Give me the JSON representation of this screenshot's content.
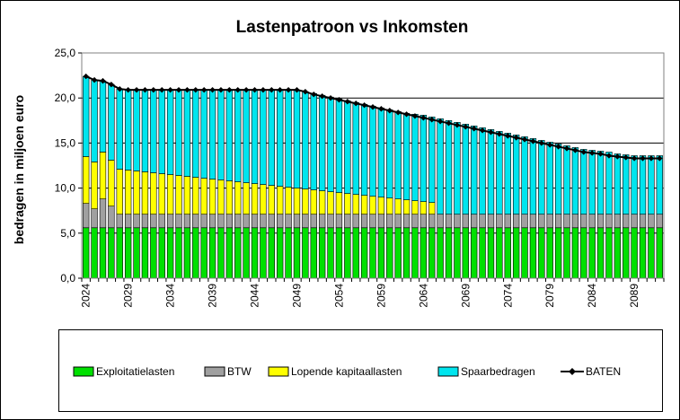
{
  "chart_data": {
    "type": "bar",
    "stacked": true,
    "title": "Lastenpatroon vs Inkomsten",
    "xlabel": "",
    "ylabel": "bedragen in miljoen euro",
    "ylim": [
      0,
      25
    ],
    "yticks": [
      "0,0",
      "5,0",
      "10,0",
      "15,0",
      "20,0",
      "25,0"
    ],
    "x_tick_labels": [
      "2024",
      "2029",
      "2034",
      "2039",
      "2044",
      "2049",
      "2054",
      "2059",
      "2064",
      "2069",
      "2074",
      "2079",
      "2084",
      "2089"
    ],
    "grid": true,
    "legend_position": "bottom",
    "categories": [
      "2024",
      "2025",
      "2026",
      "2027",
      "2028",
      "2029",
      "2030",
      "2031",
      "2032",
      "2033",
      "2034",
      "2035",
      "2036",
      "2037",
      "2038",
      "2039",
      "2040",
      "2041",
      "2042",
      "2043",
      "2044",
      "2045",
      "2046",
      "2047",
      "2048",
      "2049",
      "2050",
      "2051",
      "2052",
      "2053",
      "2054",
      "2055",
      "2056",
      "2057",
      "2058",
      "2059",
      "2060",
      "2061",
      "2062",
      "2063",
      "2064",
      "2065",
      "2066",
      "2067",
      "2068",
      "2069",
      "2070",
      "2071",
      "2072",
      "2073",
      "2074",
      "2075",
      "2076",
      "2077",
      "2078",
      "2079",
      "2080",
      "2081",
      "2082",
      "2083",
      "2084",
      "2085",
      "2086",
      "2087",
      "2088",
      "2089",
      "2090",
      "2091",
      "2092"
    ],
    "series": [
      {
        "name": "Exploitatielasten",
        "color": "#00e000",
        "kind": "bar",
        "values": [
          5.6,
          5.6,
          5.6,
          5.6,
          5.6,
          5.6,
          5.6,
          5.6,
          5.6,
          5.6,
          5.6,
          5.6,
          5.6,
          5.6,
          5.6,
          5.6,
          5.6,
          5.6,
          5.6,
          5.6,
          5.6,
          5.6,
          5.6,
          5.6,
          5.6,
          5.6,
          5.6,
          5.6,
          5.6,
          5.6,
          5.6,
          5.6,
          5.6,
          5.6,
          5.6,
          5.6,
          5.6,
          5.6,
          5.6,
          5.6,
          5.6,
          5.6,
          5.6,
          5.6,
          5.6,
          5.6,
          5.6,
          5.6,
          5.6,
          5.6,
          5.6,
          5.6,
          5.6,
          5.6,
          5.6,
          5.6,
          5.6,
          5.6,
          5.6,
          5.6,
          5.6,
          5.6,
          5.6,
          5.6,
          5.6,
          5.6,
          5.6,
          5.6,
          5.6
        ]
      },
      {
        "name": "BTW",
        "color": "#a0a0a0",
        "kind": "bar",
        "values": [
          2.7,
          2.1,
          3.2,
          2.4,
          1.5,
          1.5,
          1.5,
          1.5,
          1.5,
          1.5,
          1.5,
          1.5,
          1.5,
          1.5,
          1.5,
          1.5,
          1.5,
          1.5,
          1.5,
          1.5,
          1.5,
          1.5,
          1.5,
          1.5,
          1.5,
          1.5,
          1.5,
          1.5,
          1.5,
          1.5,
          1.5,
          1.5,
          1.5,
          1.5,
          1.5,
          1.5,
          1.5,
          1.5,
          1.5,
          1.5,
          1.5,
          1.5,
          1.5,
          1.5,
          1.5,
          1.5,
          1.5,
          1.5,
          1.5,
          1.5,
          1.5,
          1.5,
          1.5,
          1.5,
          1.5,
          1.5,
          1.5,
          1.5,
          1.5,
          1.5,
          1.5,
          1.5,
          1.5,
          1.5,
          1.5,
          1.5,
          1.5,
          1.5,
          1.5
        ]
      },
      {
        "name": "Lopende kapitaallasten",
        "color": "#ffff00",
        "kind": "bar",
        "values": [
          5.2,
          5.2,
          5.2,
          5.1,
          5.0,
          4.9,
          4.8,
          4.7,
          4.6,
          4.5,
          4.4,
          4.3,
          4.2,
          4.1,
          4.0,
          3.9,
          3.8,
          3.7,
          3.6,
          3.5,
          3.4,
          3.3,
          3.2,
          3.1,
          3.0,
          2.9,
          2.8,
          2.7,
          2.6,
          2.5,
          2.4,
          2.3,
          2.2,
          2.1,
          2.0,
          1.9,
          1.8,
          1.7,
          1.6,
          1.5,
          1.4,
          1.3,
          0,
          0,
          0,
          0,
          0,
          0,
          0,
          0,
          0,
          0,
          0,
          0,
          0,
          0,
          0,
          0,
          0,
          0,
          0,
          0,
          0,
          0,
          0,
          0,
          0,
          0,
          0
        ]
      },
      {
        "name": "Spaarbedragen",
        "color": "#00e5ee",
        "kind": "bar",
        "values": [
          8.9,
          9.1,
          7.9,
          8.4,
          8.9,
          8.9,
          9.0,
          9.1,
          9.2,
          9.3,
          9.4,
          9.5,
          9.6,
          9.7,
          9.8,
          9.9,
          10.0,
          10.1,
          10.2,
          10.3,
          10.4,
          10.5,
          10.6,
          10.7,
          10.8,
          10.9,
          10.8,
          10.7,
          10.6,
          10.5,
          10.4,
          10.3,
          10.2,
          10.1,
          10.0,
          9.9,
          9.8,
          9.7,
          9.6,
          9.6,
          9.6,
          9.5,
          10.6,
          10.4,
          10.2,
          10.0,
          9.8,
          9.6,
          9.4,
          9.2,
          9.0,
          8.8,
          8.6,
          8.4,
          8.2,
          8.0,
          7.8,
          7.6,
          7.4,
          7.2,
          7.1,
          7.0,
          6.9,
          6.7,
          6.6,
          6.5,
          6.5,
          6.5,
          6.5
        ]
      },
      {
        "name": "BATEN",
        "color": "#000000",
        "kind": "line",
        "values": [
          22.4,
          22.0,
          21.9,
          21.5,
          21.0,
          20.9,
          20.9,
          20.9,
          20.9,
          20.9,
          20.9,
          20.9,
          20.9,
          20.9,
          20.9,
          20.9,
          20.9,
          20.9,
          20.9,
          20.9,
          20.9,
          20.9,
          20.9,
          20.9,
          20.9,
          20.9,
          20.7,
          20.4,
          20.2,
          20.0,
          19.8,
          19.6,
          19.4,
          19.2,
          19.0,
          18.8,
          18.6,
          18.4,
          18.2,
          18.0,
          17.8,
          17.6,
          17.4,
          17.2,
          17.0,
          16.8,
          16.6,
          16.4,
          16.2,
          16.0,
          15.8,
          15.6,
          15.4,
          15.2,
          15.0,
          14.8,
          14.6,
          14.4,
          14.2,
          14.0,
          13.9,
          13.8,
          13.6,
          13.5,
          13.4,
          13.3,
          13.3,
          13.3,
          13.3
        ]
      }
    ]
  }
}
